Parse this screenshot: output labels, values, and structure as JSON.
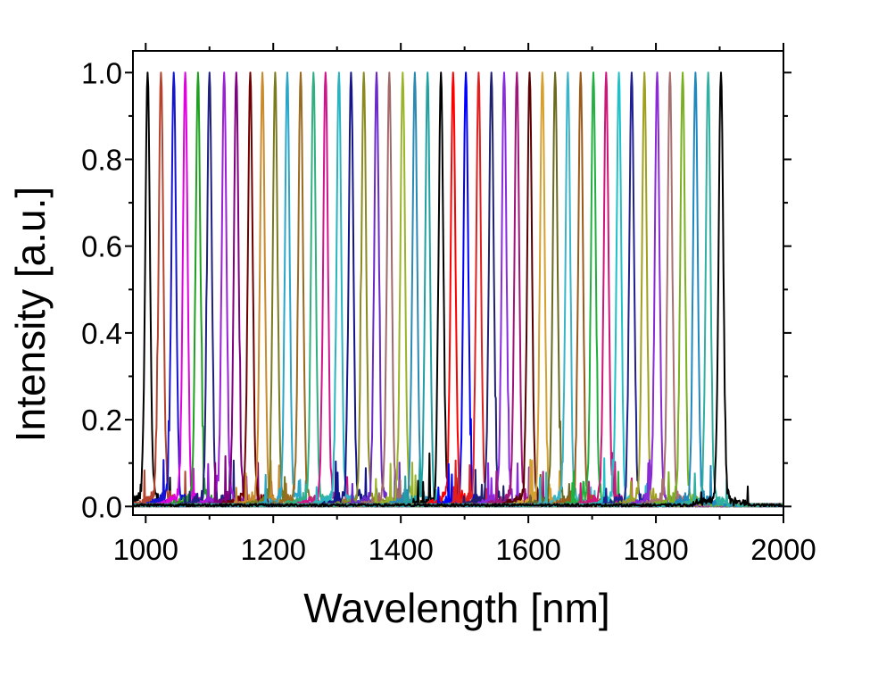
{
  "chart_data": {
    "type": "line",
    "title": "",
    "xlabel": "Wavelength [nm]",
    "ylabel": "Intensity [a.u.]",
    "xlim": [
      980,
      2000
    ],
    "ylim": [
      -0.02,
      1.05
    ],
    "x_ticks": [
      {
        "value": 1000,
        "label": "1000"
      },
      {
        "value": 1200,
        "label": "1200"
      },
      {
        "value": 1400,
        "label": "1400"
      },
      {
        "value": 1600,
        "label": "1600"
      },
      {
        "value": 1800,
        "label": "1800"
      },
      {
        "value": 2000,
        "label": "2000"
      }
    ],
    "y_ticks": [
      {
        "value": 0.0,
        "label": "0.0"
      },
      {
        "value": 0.2,
        "label": "0.2"
      },
      {
        "value": 0.4,
        "label": "0.4"
      },
      {
        "value": 0.6,
        "label": "0.6"
      },
      {
        "value": 0.8,
        "label": "0.8"
      },
      {
        "value": 1.0,
        "label": "1.0"
      }
    ],
    "grid": false,
    "legend": "none",
    "line_shape": "narrow normalized emission peak (FWHM about 8 nm) with low noisy side lobes below 0.15",
    "series": [
      {
        "peak": 1003,
        "color": "#000000"
      },
      {
        "peak": 1024,
        "color": "#b5432e"
      },
      {
        "peak": 1044,
        "color": "#1414d2"
      },
      {
        "peak": 1062,
        "color": "#e000e0"
      },
      {
        "peak": 1082,
        "color": "#20a020"
      },
      {
        "peak": 1100,
        "color": "#202080"
      },
      {
        "peak": 1123,
        "color": "#9b1fd6"
      },
      {
        "peak": 1142,
        "color": "#800080"
      },
      {
        "peak": 1164,
        "color": "#700000"
      },
      {
        "peak": 1183,
        "color": "#c88a2a"
      },
      {
        "peak": 1203,
        "color": "#7a7a20"
      },
      {
        "peak": 1222,
        "color": "#2aa6c8"
      },
      {
        "peak": 1243,
        "color": "#9a6a20"
      },
      {
        "peak": 1263,
        "color": "#30b080"
      },
      {
        "peak": 1282,
        "color": "#d2148c"
      },
      {
        "peak": 1303,
        "color": "#2ab4c0"
      },
      {
        "peak": 1322,
        "color": "#14148c"
      },
      {
        "peak": 1342,
        "color": "#8a8a20"
      },
      {
        "peak": 1362,
        "color": "#6a2ac8"
      },
      {
        "peak": 1382,
        "color": "#a06a6a"
      },
      {
        "peak": 1403,
        "color": "#9ab42a"
      },
      {
        "peak": 1422,
        "color": "#2a8ab4"
      },
      {
        "peak": 1442,
        "color": "#20a0a0"
      },
      {
        "peak": 1463,
        "color": "#000000"
      },
      {
        "peak": 1482,
        "color": "#ff0000"
      },
      {
        "peak": 1502,
        "color": "#0000ff"
      },
      {
        "peak": 1522,
        "color": "#e02020"
      },
      {
        "peak": 1542,
        "color": "#202070"
      },
      {
        "peak": 1562,
        "color": "#8a2ae0"
      },
      {
        "peak": 1582,
        "color": "#a0147a"
      },
      {
        "peak": 1602,
        "color": "#5a0000"
      },
      {
        "peak": 1622,
        "color": "#d6a030"
      },
      {
        "peak": 1642,
        "color": "#6a6a20"
      },
      {
        "peak": 1662,
        "color": "#3ab4c8"
      },
      {
        "peak": 1682,
        "color": "#9a5a1a"
      },
      {
        "peak": 1702,
        "color": "#20b040"
      },
      {
        "peak": 1722,
        "color": "#d01478"
      },
      {
        "peak": 1742,
        "color": "#20c0c8"
      },
      {
        "peak": 1762,
        "color": "#202090"
      },
      {
        "peak": 1782,
        "color": "#a0a020"
      },
      {
        "peak": 1802,
        "color": "#8a2ad6"
      },
      {
        "peak": 1822,
        "color": "#a87070"
      },
      {
        "peak": 1842,
        "color": "#7ab020"
      },
      {
        "peak": 1862,
        "color": "#1e88c0"
      },
      {
        "peak": 1882,
        "color": "#30b0a0"
      },
      {
        "peak": 1902,
        "color": "#000000"
      }
    ]
  }
}
